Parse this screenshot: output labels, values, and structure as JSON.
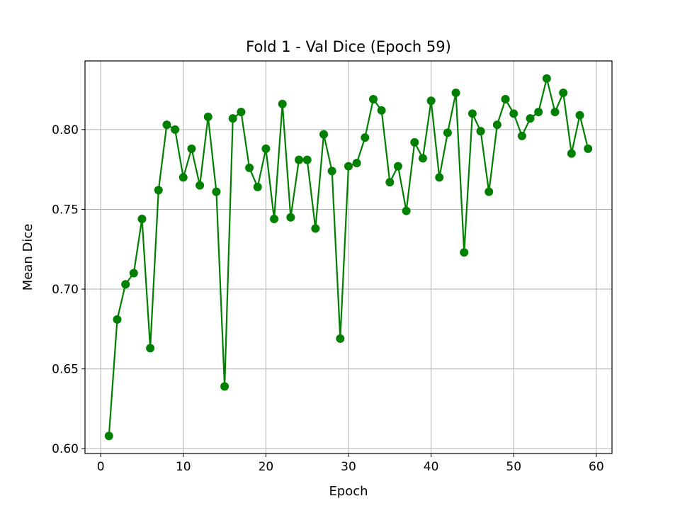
{
  "chart_data": {
    "type": "line",
    "title": "Fold 1 - Val Dice (Epoch 59)",
    "xlabel": "Epoch",
    "ylabel": "Mean Dice",
    "xlim": [
      -1.9,
      61.9
    ],
    "ylim": [
      0.597,
      0.843
    ],
    "x_ticks": [
      0,
      10,
      20,
      30,
      40,
      50,
      60
    ],
    "y_ticks": [
      0.6,
      0.65,
      0.7,
      0.75,
      0.8
    ],
    "x_tick_labels": [
      "0",
      "10",
      "20",
      "30",
      "40",
      "50",
      "60"
    ],
    "y_tick_labels": [
      "0.60",
      "0.65",
      "0.70",
      "0.75",
      "0.80"
    ],
    "grid": true,
    "legend": "none",
    "series": [
      {
        "color": "#008000",
        "marker": "circle",
        "x": [
          1,
          2,
          3,
          4,
          5,
          6,
          7,
          8,
          9,
          10,
          11,
          12,
          13,
          14,
          15,
          16,
          17,
          18,
          19,
          20,
          21,
          22,
          23,
          24,
          25,
          26,
          27,
          28,
          29,
          30,
          31,
          32,
          33,
          34,
          35,
          36,
          37,
          38,
          39,
          40,
          41,
          42,
          43,
          44,
          45,
          46,
          47,
          48,
          49,
          50,
          51,
          52,
          53,
          54,
          55,
          56,
          57,
          58,
          59
        ],
        "values": [
          0.608,
          0.681,
          0.703,
          0.71,
          0.744,
          0.663,
          0.762,
          0.803,
          0.8,
          0.77,
          0.788,
          0.765,
          0.808,
          0.761,
          0.639,
          0.807,
          0.811,
          0.776,
          0.764,
          0.788,
          0.744,
          0.816,
          0.745,
          0.781,
          0.781,
          0.738,
          0.797,
          0.774,
          0.669,
          0.777,
          0.779,
          0.795,
          0.819,
          0.812,
          0.767,
          0.777,
          0.749,
          0.792,
          0.782,
          0.818,
          0.77,
          0.798,
          0.823,
          0.723,
          0.81,
          0.799,
          0.761,
          0.803,
          0.819,
          0.81,
          0.796,
          0.807,
          0.811,
          0.832,
          0.811,
          0.823,
          0.785,
          0.809,
          0.788
        ]
      }
    ]
  }
}
